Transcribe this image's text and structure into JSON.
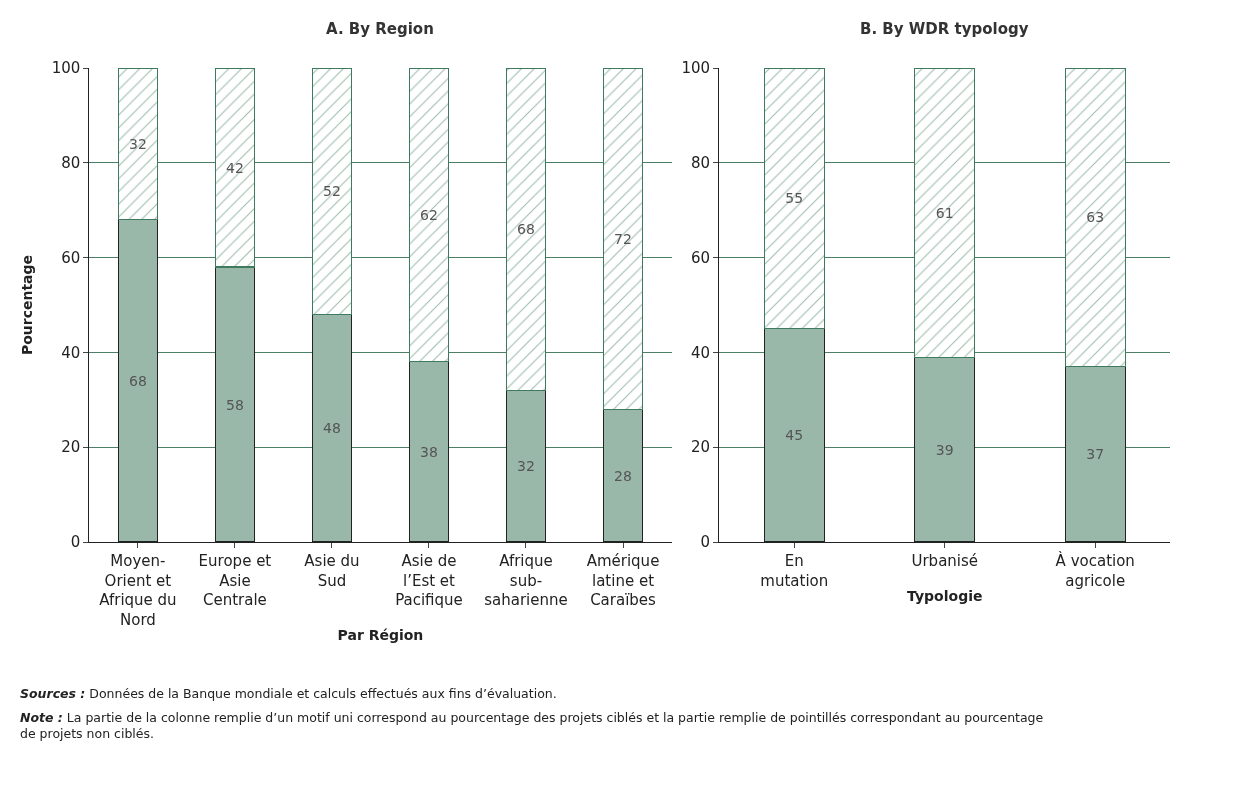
{
  "chart_data": [
    {
      "type": "bar",
      "title": "A. By Region",
      "xlabel": "Par Région",
      "ylabel": "Pourcentage",
      "stacked": true,
      "data_labels": true,
      "grid": "y",
      "ylim": [
        0,
        100
      ],
      "yticks": [
        0,
        20,
        40,
        60,
        80,
        100
      ],
      "categories": [
        "Moyen-Orient et Afrique du Nord",
        "Europe et Asie Centrale",
        "Asie du Sud",
        "Asie de l’Est et Pacifique",
        "Afrique sub-saharienne",
        "Amérique latine et Caraïbes"
      ],
      "series": [
        {
          "color": "#99b8aa",
          "values": [
            68,
            58,
            48,
            38,
            32,
            28
          ]
        },
        {
          "color": "#3d7a5e",
          "values": [
            32,
            42,
            52,
            62,
            68,
            72
          ]
        }
      ],
      "annotations": [
        "Sources : Données de la Banque mondiale et calculs effectués aux fins d’évaluation.",
        "Note : La partie de la colonne remplie d’un motif uni correspond au pourcentage des projets ciblés et la partie remplie de pointillés correspondant au pourcentage de projets non ciblés."
      ]
    },
    {
      "type": "bar",
      "title": "B. By WDR typology",
      "xlabel": "Typologie",
      "stacked": true,
      "data_labels": true,
      "grid": "y",
      "ylim": [
        0,
        100
      ],
      "yticks": [
        0,
        20,
        40,
        60,
        80,
        100
      ],
      "categories": [
        "En mutation",
        "Urbanisé",
        "À vocation agricole"
      ],
      "series": [
        {
          "color": "#99b8aa",
          "values": [
            45,
            39,
            37
          ]
        },
        {
          "color": "#3d7a5e",
          "values": [
            55,
            61,
            63
          ]
        }
      ]
    }
  ]
}
